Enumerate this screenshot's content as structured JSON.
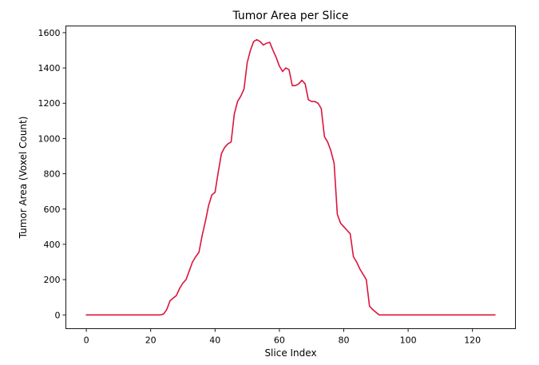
{
  "chart_data": {
    "type": "line",
    "title": "Tumor Area per Slice",
    "xlabel": "Slice Index",
    "ylabel": "Tumor Area (Voxel Count)",
    "xlim": [
      -6.35,
      133.35
    ],
    "ylim": [
      -78,
      1638
    ],
    "grid": false,
    "line_color": "#dc143c",
    "x_ticks": [
      0,
      20,
      40,
      60,
      80,
      100,
      120
    ],
    "y_ticks": [
      0,
      200,
      400,
      600,
      800,
      1000,
      1200,
      1400,
      1600
    ],
    "x": [
      0,
      1,
      2,
      3,
      4,
      5,
      6,
      7,
      8,
      9,
      10,
      11,
      12,
      13,
      14,
      15,
      16,
      17,
      18,
      19,
      20,
      21,
      22,
      23,
      24,
      25,
      26,
      27,
      28,
      29,
      30,
      31,
      32,
      33,
      34,
      35,
      36,
      37,
      38,
      39,
      40,
      41,
      42,
      43,
      44,
      45,
      46,
      47,
      48,
      49,
      50,
      51,
      52,
      53,
      54,
      55,
      56,
      57,
      58,
      59,
      60,
      61,
      62,
      63,
      64,
      65,
      66,
      67,
      68,
      69,
      70,
      71,
      72,
      73,
      74,
      75,
      76,
      77,
      78,
      79,
      80,
      81,
      82,
      83,
      84,
      85,
      86,
      87,
      88,
      89,
      90,
      91,
      92,
      93,
      94,
      95,
      96,
      97,
      98,
      99,
      100,
      101,
      102,
      103,
      104,
      105,
      106,
      107,
      108,
      109,
      110,
      111,
      112,
      113,
      114,
      115,
      116,
      117,
      118,
      119,
      120,
      121,
      122,
      123,
      124,
      125,
      126,
      127
    ],
    "y": [
      0,
      0,
      0,
      0,
      0,
      0,
      0,
      0,
      0,
      0,
      0,
      0,
      0,
      0,
      0,
      0,
      0,
      0,
      0,
      0,
      0,
      0,
      0,
      0,
      5,
      30,
      80,
      95,
      110,
      150,
      180,
      200,
      250,
      300,
      330,
      355,
      450,
      530,
      620,
      680,
      695,
      810,
      915,
      950,
      970,
      980,
      1140,
      1210,
      1240,
      1280,
      1430,
      1500,
      1550,
      1560,
      1550,
      1530,
      1540,
      1545,
      1500,
      1460,
      1410,
      1380,
      1400,
      1390,
      1300,
      1300,
      1310,
      1330,
      1310,
      1220,
      1210,
      1210,
      1200,
      1170,
      1010,
      980,
      930,
      860,
      570,
      520,
      500,
      480,
      460,
      330,
      300,
      260,
      230,
      200,
      50,
      30,
      15,
      0,
      0,
      0,
      0,
      0,
      0,
      0,
      0,
      0,
      0,
      0,
      0,
      0,
      0,
      0,
      0,
      0,
      0,
      0,
      0,
      0,
      0,
      0,
      0,
      0,
      0,
      0,
      0,
      0,
      0,
      0,
      0,
      0,
      0,
      0,
      0,
      0
    ]
  }
}
